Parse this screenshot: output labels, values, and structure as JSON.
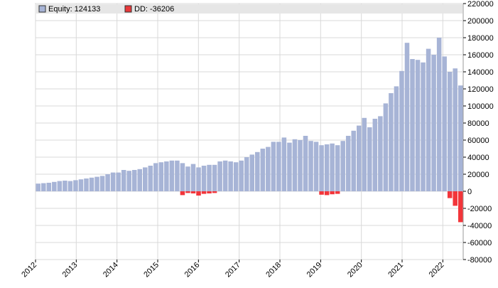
{
  "chart_data": {
    "type": "bar",
    "legend": [
      {
        "label": "Equity: 124133",
        "color": "#a7b4d6"
      },
      {
        "label": "DD: -36206",
        "color": "#e8383a"
      }
    ],
    "legend_position": "top-left",
    "colors": {
      "equity": "#a7b4d6",
      "drawdown": "#f2353a",
      "grid": "#d9d9d9",
      "legend_bg": "#e6e6e6"
    },
    "ylim": [
      -80000,
      220000
    ],
    "yticks": [
      -80000,
      -60000,
      -40000,
      -20000,
      0,
      20000,
      40000,
      60000,
      80000,
      100000,
      120000,
      140000,
      160000,
      180000,
      200000,
      220000
    ],
    "ytick_labels": [
      "-80000",
      "-60000",
      "-40000",
      "-20000",
      "0",
      "20000",
      "40000",
      "60000",
      "80000",
      "100000",
      "120000",
      "140000",
      "160000",
      "180000",
      "200000",
      "220000"
    ],
    "xlim": [
      2012.0,
      2022.5
    ],
    "xticks": [
      2012,
      2013,
      2014,
      2015,
      2016,
      2017,
      2018,
      2019,
      2020,
      2021,
      2022
    ],
    "xtick_labels": [
      "2012",
      "2013",
      "2014",
      "2015",
      "2016",
      "2017",
      "2018",
      "2019",
      "2020",
      "2021",
      "2022"
    ],
    "grid": true,
    "series": [
      {
        "name": "Equity",
        "values": [
          9000,
          9500,
          10000,
          11000,
          12000,
          12500,
          12000,
          13000,
          14000,
          15000,
          16000,
          17000,
          18000,
          20000,
          22000,
          22000,
          25000,
          24000,
          25000,
          26000,
          28000,
          30000,
          33000,
          34000,
          35000,
          36000,
          36000,
          33000,
          29000,
          32000,
          28000,
          30000,
          31000,
          31000,
          35000,
          36000,
          35000,
          34000,
          36000,
          40000,
          43000,
          46000,
          50000,
          52000,
          58000,
          58000,
          63000,
          57000,
          61000,
          60000,
          65000,
          59000,
          58000,
          54000,
          55000,
          56000,
          54000,
          59000,
          65000,
          71000,
          77000,
          86000,
          75000,
          85000,
          88000,
          103000,
          115000,
          123000,
          141000,
          174000,
          155000,
          154000,
          151000,
          167000,
          160000,
          180000,
          158000,
          140000,
          144000,
          124000
        ]
      },
      {
        "name": "DD",
        "values": [
          0,
          0,
          0,
          0,
          0,
          0,
          0,
          0,
          0,
          0,
          0,
          0,
          0,
          0,
          0,
          0,
          0,
          0,
          0,
          0,
          0,
          0,
          0,
          0,
          0,
          0,
          0,
          -4500,
          -2000,
          -2500,
          -5000,
          -3000,
          -2500,
          -2000,
          0,
          0,
          0,
          0,
          0,
          0,
          0,
          0,
          0,
          0,
          0,
          0,
          0,
          0,
          0,
          0,
          0,
          0,
          0,
          -4000,
          -4500,
          -3500,
          -3000,
          0,
          0,
          0,
          0,
          0,
          0,
          0,
          0,
          0,
          0,
          0,
          0,
          0,
          0,
          0,
          0,
          0,
          0,
          0,
          0,
          -8000,
          -17000,
          -36206
        ]
      }
    ]
  }
}
